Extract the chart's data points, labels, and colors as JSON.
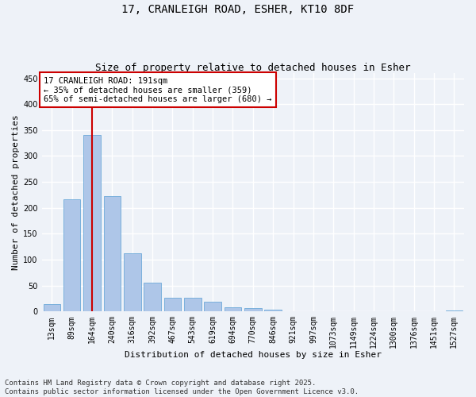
{
  "title_line1": "17, CRANLEIGH ROAD, ESHER, KT10 8DF",
  "title_line2": "Size of property relative to detached houses in Esher",
  "xlabel": "Distribution of detached houses by size in Esher",
  "ylabel": "Number of detached properties",
  "bar_labels": [
    "13sqm",
    "89sqm",
    "164sqm",
    "240sqm",
    "316sqm",
    "392sqm",
    "467sqm",
    "543sqm",
    "619sqm",
    "694sqm",
    "770sqm",
    "846sqm",
    "921sqm",
    "997sqm",
    "1073sqm",
    "1149sqm",
    "1224sqm",
    "1300sqm",
    "1376sqm",
    "1451sqm",
    "1527sqm"
  ],
  "bar_values": [
    15,
    216,
    340,
    222,
    112,
    55,
    26,
    26,
    19,
    8,
    6,
    4,
    0,
    0,
    0,
    1,
    1,
    0,
    1,
    0,
    2
  ],
  "bar_color": "#aec6e8",
  "bar_edgecolor": "#5a9fd4",
  "vline_x": 2.0,
  "vline_color": "#cc0000",
  "annotation_text": "17 CRANLEIGH ROAD: 191sqm\n← 35% of detached houses are smaller (359)\n65% of semi-detached houses are larger (680) →",
  "annotation_box_color": "#ffffff",
  "annotation_box_edge": "#cc0000",
  "ylim": [
    0,
    460
  ],
  "yticks": [
    0,
    50,
    100,
    150,
    200,
    250,
    300,
    350,
    400,
    450
  ],
  "background_color": "#eef2f8",
  "grid_color": "#ffffff",
  "footer_text": "Contains HM Land Registry data © Crown copyright and database right 2025.\nContains public sector information licensed under the Open Government Licence v3.0.",
  "title_fontsize": 10,
  "subtitle_fontsize": 9,
  "axis_label_fontsize": 8,
  "tick_fontsize": 7,
  "annotation_fontsize": 7.5,
  "footer_fontsize": 6.5
}
